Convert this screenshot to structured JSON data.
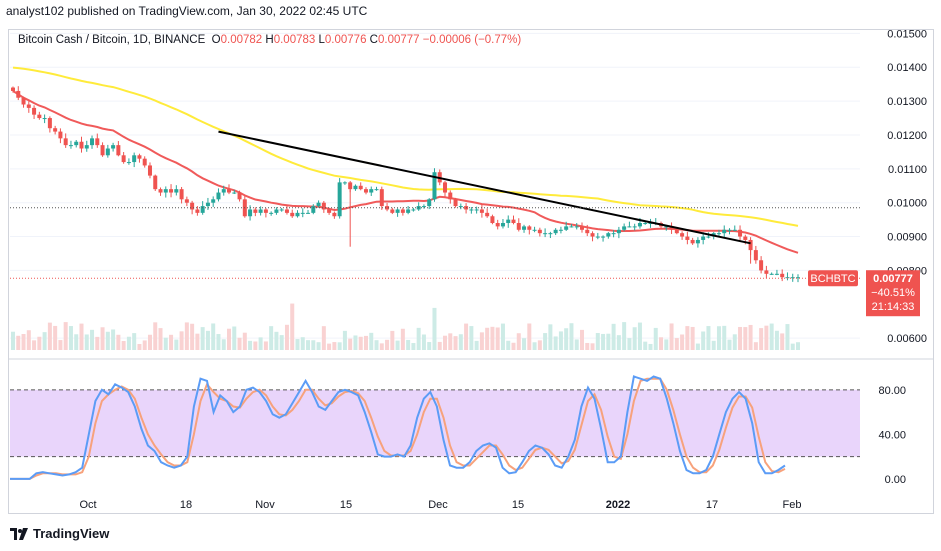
{
  "header": {
    "published": "analyst102 published on TradingView.com, Jan 30, 2022 02:45 UTC"
  },
  "legend": {
    "symbol": "Bitcoin Cash / Bitcoin, 1D, BINANCE",
    "o_label": "O",
    "o_value": "0.00782",
    "h_label": "H",
    "h_value": "0.00783",
    "l_label": "L",
    "l_value": "0.00776",
    "c_label": "C",
    "c_value": "0.00777",
    "change": "−0.00006 (−0.77%)"
  },
  "price_badge": {
    "ticker": "BCHBTC",
    "price": "0.00777",
    "pct": "−40.51%",
    "countdown": "21:14:33"
  },
  "footer": {
    "brand": "TradingView"
  },
  "colors": {
    "up": "#26a69a",
    "down": "#ef5350",
    "ma20": "#f05a5a",
    "ma50": "#ffeb3b",
    "trendline": "#000000",
    "stoch_k": "#5b9cf6",
    "stoch_d": "#f7a27c",
    "stoch_band": "#e9d5fb",
    "grid": "#f0f3fa",
    "text": "#131722"
  },
  "chart_data": [
    {
      "type": "candlestick",
      "title": "Bitcoin Cash / Bitcoin, 1D, BINANCE",
      "x_tick_labels": [
        "Oct",
        "18",
        "Nov",
        "15",
        "Dec",
        "15",
        "2022",
        "17",
        "Feb"
      ],
      "y_tick_labels": [
        "0.01500",
        "0.01400",
        "0.01300",
        "0.01200",
        "0.01100",
        "0.01000",
        "0.00900",
        "0.00800",
        "0.00600"
      ],
      "ylim": [
        0.00565,
        0.0151
      ],
      "dotted_levels": [
        0.00985,
        0.00777
      ],
      "closes": [
        0.0133,
        0.0131,
        0.0129,
        0.0128,
        0.0126,
        0.0125,
        0.0125,
        0.0122,
        0.0121,
        0.0119,
        0.0117,
        0.0117,
        0.0118,
        0.0116,
        0.0117,
        0.0119,
        0.0117,
        0.0114,
        0.0116,
        0.0117,
        0.0114,
        0.0112,
        0.0112,
        0.0114,
        0.0113,
        0.0111,
        0.0108,
        0.0104,
        0.0103,
        0.0104,
        0.0103,
        0.0104,
        0.0101,
        0.01,
        0.0098,
        0.0097,
        0.0099,
        0.01,
        0.0101,
        0.0103,
        0.0104,
        0.0103,
        0.0103,
        0.0101,
        0.0096,
        0.0098,
        0.0097,
        0.0098,
        0.0097,
        0.0097,
        0.0098,
        0.0098,
        0.0097,
        0.0096,
        0.0097,
        0.0097,
        0.0097,
        0.0099,
        0.01,
        0.0098,
        0.0097,
        0.0096,
        0.0106,
        0.0106,
        0.0104,
        0.0105,
        0.0104,
        0.0103,
        0.0104,
        0.0104,
        0.0099,
        0.0098,
        0.0097,
        0.0098,
        0.0097,
        0.0098,
        0.0098,
        0.0099,
        0.0099,
        0.0101,
        0.0109,
        0.0106,
        0.0103,
        0.0101,
        0.0099,
        0.0099,
        0.0098,
        0.0098,
        0.0098,
        0.0097,
        0.0096,
        0.0094,
        0.0093,
        0.0094,
        0.0095,
        0.0094,
        0.0092,
        0.0093,
        0.0092,
        0.0092,
        0.0091,
        0.0091,
        0.0091,
        0.0092,
        0.0092,
        0.0093,
        0.0093,
        0.0093,
        0.0092,
        0.0091,
        0.009,
        0.009,
        0.009,
        0.0091,
        0.0091,
        0.0092,
        0.0093,
        0.0093,
        0.0093,
        0.0094,
        0.0094,
        0.0094,
        0.0094,
        0.0093,
        0.0093,
        0.0092,
        0.0091,
        0.009,
        0.0089,
        0.0088,
        0.0089,
        0.009,
        0.009,
        0.0091,
        0.0091,
        0.0092,
        0.0092,
        0.0092,
        0.009,
        0.0089,
        0.0086,
        0.0083,
        0.008,
        0.0079,
        0.0079,
        0.0079,
        0.0078,
        0.0078,
        0.0078,
        0.0078
      ],
      "volume_scale_labels": [
        "0.00600"
      ]
    },
    {
      "type": "line",
      "name": "Stochastic",
      "y_tick_labels": [
        "80.00",
        "40.00",
        "0.00"
      ],
      "ylim": [
        -10,
        105
      ],
      "band": [
        20,
        80
      ],
      "k": [
        0,
        0,
        0,
        0,
        5,
        6,
        5,
        4,
        3,
        4,
        6,
        10,
        40,
        70,
        80,
        76,
        85,
        82,
        78,
        65,
        45,
        30,
        25,
        15,
        12,
        10,
        12,
        20,
        65,
        90,
        88,
        60,
        75,
        70,
        60,
        65,
        80,
        82,
        78,
        70,
        58,
        55,
        58,
        68,
        78,
        88,
        78,
        65,
        62,
        70,
        78,
        80,
        78,
        75,
        60,
        42,
        22,
        20,
        20,
        22,
        20,
        30,
        55,
        72,
        78,
        65,
        35,
        12,
        10,
        10,
        15,
        25,
        30,
        32,
        28,
        10,
        5,
        6,
        15,
        25,
        30,
        28,
        22,
        12,
        10,
        20,
        35,
        65,
        82,
        72,
        45,
        15,
        15,
        20,
        60,
        92,
        90,
        88,
        92,
        90,
        72,
        50,
        25,
        8,
        5,
        5,
        8,
        20,
        40,
        60,
        72,
        78,
        72,
        50,
        15,
        5,
        5,
        8,
        12
      ],
      "d": [
        0,
        0,
        0,
        0,
        3,
        5,
        5,
        5,
        4,
        4,
        4,
        6,
        20,
        50,
        70,
        76,
        80,
        83,
        80,
        72,
        55,
        40,
        30,
        22,
        15,
        12,
        12,
        15,
        40,
        70,
        85,
        78,
        72,
        70,
        65,
        64,
        72,
        78,
        80,
        75,
        65,
        58,
        57,
        62,
        70,
        80,
        80,
        72,
        66,
        68,
        74,
        78,
        79,
        77,
        70,
        55,
        38,
        25,
        21,
        21,
        21,
        25,
        40,
        60,
        72,
        72,
        55,
        30,
        15,
        12,
        12,
        18,
        24,
        30,
        30,
        22,
        12,
        8,
        10,
        18,
        26,
        28,
        26,
        20,
        14,
        16,
        26,
        48,
        70,
        76,
        62,
        38,
        20,
        18,
        40,
        70,
        88,
        90,
        90,
        90,
        80,
        62,
        40,
        20,
        10,
        6,
        6,
        12,
        26,
        46,
        64,
        74,
        74,
        64,
        38,
        15,
        7,
        6,
        9
      ]
    }
  ]
}
